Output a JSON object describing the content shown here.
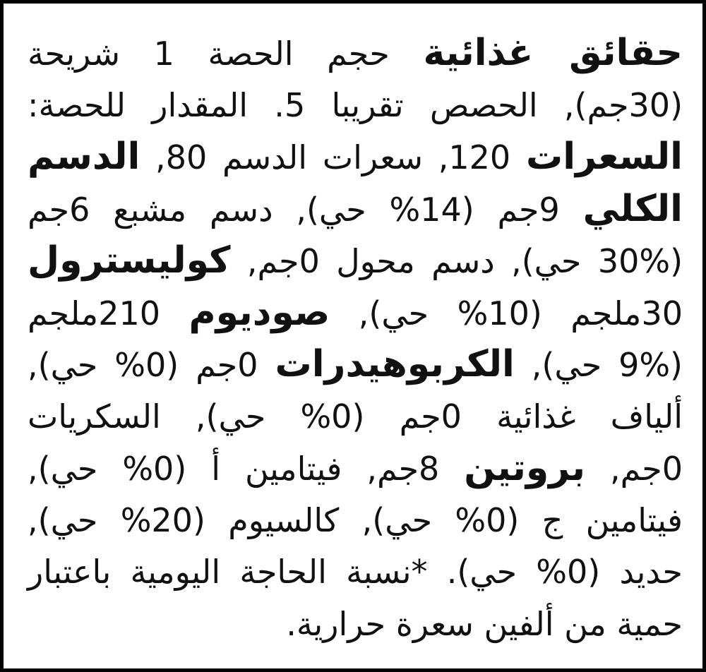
{
  "nutrition_facts": {
    "lines": [
      [
        {
          "t": "حقائق غذائية",
          "b": true
        },
        {
          "t": " حجم الحصة 1 شريحة"
        }
      ],
      [
        {
          "t": "(30جم), الحصص تقريبا 5. المقدار للحصة:"
        }
      ],
      [
        {
          "t": "السعرات",
          "b": true
        },
        {
          "t": " 120, سعرات الدسم 80, "
        },
        {
          "t": "الدسم",
          "b": true
        }
      ],
      [
        {
          "t": "الكلي",
          "b": true
        },
        {
          "t": " 9جم (14% حي), دسم مشبع 6جم"
        }
      ],
      [
        {
          "t": "(30% حي), دسم محول 0جم, "
        },
        {
          "t": "كوليسترول",
          "b": true
        }
      ],
      [
        {
          "t": "30ملجم (10% حي), "
        },
        {
          "t": "صوديوم",
          "b": true
        },
        {
          "t": " 210ملجم"
        }
      ],
      [
        {
          "t": "(9% حي), "
        },
        {
          "t": "الكربوهيدرات",
          "b": true
        },
        {
          "t": " 0جم (0% حي),"
        }
      ],
      [
        {
          "t": "ألياف غذائية 0جم (0% حي), السكريات"
        }
      ],
      [
        {
          "t": "0جم, "
        },
        {
          "t": "بروتين",
          "b": true
        },
        {
          "t": " 8جم, فيتامين أ (0% حي),"
        }
      ],
      [
        {
          "t": "فيتامين ج (0% حي), كالسيوم (20% حي),"
        }
      ],
      [
        {
          "t": "حديد (0% حي). *نسبة الحاجة اليومية باعتبار"
        }
      ],
      [
        {
          "t": "حمية من ألفين سعرة حرارية."
        }
      ]
    ]
  }
}
